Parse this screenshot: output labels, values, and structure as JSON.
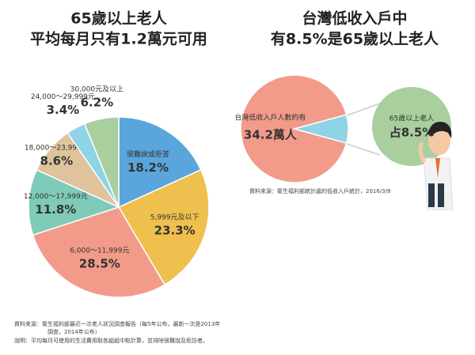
{
  "chart_data": [
    {
      "type": "pie",
      "title": [
        "65歲以上老人",
        "平均每月只有1.2萬元可用"
      ],
      "categories": [
        "很難說或拒答",
        "5,999元及以下",
        "6,000～11,999元",
        "12,000～17,999元",
        "18,000～23,999元",
        "24,000～29,999元",
        "30,000元及以上"
      ],
      "values": [
        18.2,
        23.3,
        28.5,
        11.8,
        8.6,
        3.4,
        6.2
      ],
      "value_labels": [
        "18.2%",
        "23.3%",
        "28.5%",
        "11.8%",
        "8.6%",
        "3.4%",
        "6.2%"
      ],
      "colors": [
        "#5aa6dc",
        "#efc04e",
        "#f29b8a",
        "#7fcab8",
        "#dfc39c",
        "#8fd3e6",
        "#a9cf9e"
      ],
      "source": [
        "資料來源：衛生福利部最近一次老人狀況調查報告（每5年公布，最新一次是2013年",
        "調查，2014年公布）"
      ],
      "note": "說明：平均每月可使用的生活費用取各組組中點計算，並排除很難說及拒訪者。"
    },
    {
      "type": "pie",
      "title": [
        "台灣低收入戶中",
        "有8.5%是65歲以上老人"
      ],
      "categories": [
        "台灣低收入戶人數約有",
        "65歲以上老人"
      ],
      "values": [
        91.5,
        8.5
      ],
      "value_labels": [
        null,
        "占8.5%"
      ],
      "colors": [
        "#f29b8a",
        "#8fd3e6"
      ],
      "annotation": "34.2萬人",
      "source": "資料來源：衛生福利部統計處的低收入戶統計，2016/3/8"
    }
  ]
}
